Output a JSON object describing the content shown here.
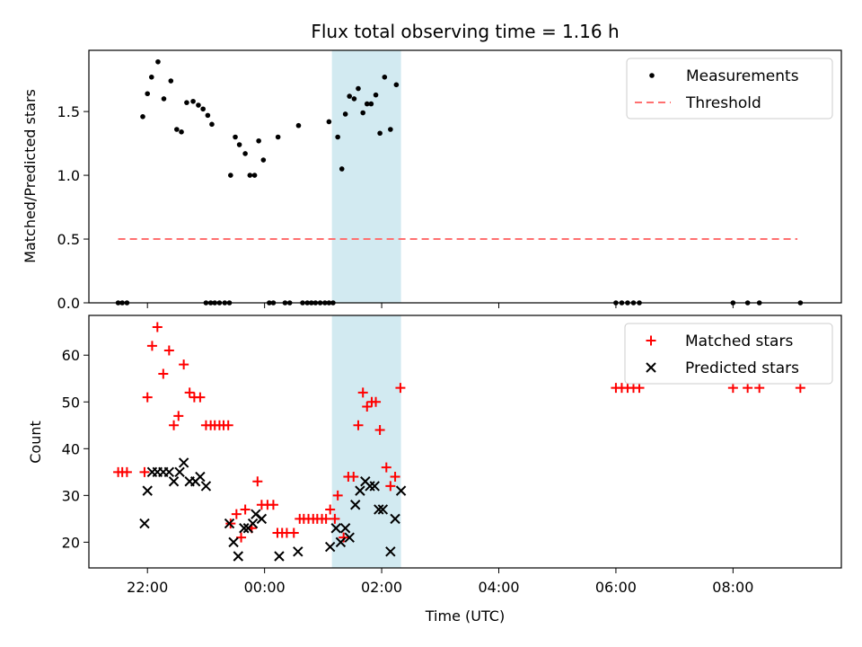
{
  "chart_data": {
    "type": "scatter",
    "title": "Flux total observing time = 1.16 h",
    "xlabel": "Time (UTC)",
    "colors": {
      "matched": "#ff0000",
      "predicted": "#000000",
      "threshold": "#ff7070",
      "shade": "#add8e6",
      "measurement": "#000000"
    },
    "x_axis": {
      "unit": "hours relative to 00:00 UTC",
      "xlim": [
        -3.0,
        9.85
      ],
      "ticks": [
        -2,
        0,
        2,
        4,
        6,
        8
      ],
      "tick_labels": [
        "22:00",
        "00:00",
        "02:00",
        "04:00",
        "06:00",
        "08:00"
      ]
    },
    "shaded_interval": [
      1.15,
      2.33
    ],
    "panels": [
      {
        "ylabel": "Matched/Predicted stars",
        "ylim": [
          0,
          1.98
        ],
        "yticks": [
          0.0,
          0.5,
          1.0,
          1.5
        ],
        "ytick_labels": [
          "0.0",
          "0.5",
          "1.0",
          "1.5"
        ],
        "legend": {
          "position": "top-right",
          "entries": [
            "Measurements",
            "Threshold"
          ]
        },
        "threshold": {
          "name": "Threshold",
          "value": 0.5,
          "x_range": [
            -2.5,
            9.1
          ]
        },
        "measurements": {
          "name": "Measurements",
          "points": [
            [
              -2.5,
              0
            ],
            [
              -2.43,
              0
            ],
            [
              -2.35,
              0
            ],
            [
              -2.08,
              1.46
            ],
            [
              -2.0,
              1.64
            ],
            [
              -1.93,
              1.77
            ],
            [
              -1.82,
              1.89
            ],
            [
              -1.72,
              1.6
            ],
            [
              -1.6,
              1.74
            ],
            [
              -1.5,
              1.36
            ],
            [
              -1.42,
              1.34
            ],
            [
              -1.33,
              1.57
            ],
            [
              -1.22,
              1.58
            ],
            [
              -1.13,
              1.55
            ],
            [
              -1.05,
              1.52
            ],
            [
              -0.97,
              1.47
            ],
            [
              -0.9,
              1.4
            ],
            [
              -1.0,
              0
            ],
            [
              -0.92,
              0
            ],
            [
              -0.85,
              0
            ],
            [
              -0.77,
              0
            ],
            [
              -0.68,
              0
            ],
            [
              -0.6,
              0
            ],
            [
              -0.58,
              1.0
            ],
            [
              -0.5,
              1.3
            ],
            [
              -0.43,
              1.24
            ],
            [
              -0.33,
              1.17
            ],
            [
              -0.25,
              1.0
            ],
            [
              -0.17,
              1.0
            ],
            [
              -0.1,
              1.27
            ],
            [
              -0.02,
              1.12
            ],
            [
              0.08,
              0
            ],
            [
              0.15,
              0
            ],
            [
              0.23,
              1.3
            ],
            [
              0.35,
              0
            ],
            [
              0.43,
              0
            ],
            [
              0.58,
              1.39
            ],
            [
              0.65,
              0
            ],
            [
              0.73,
              0
            ],
            [
              0.8,
              0
            ],
            [
              0.87,
              0
            ],
            [
              0.95,
              0
            ],
            [
              1.03,
              0
            ],
            [
              1.1,
              0
            ],
            [
              1.17,
              0
            ],
            [
              1.1,
              1.42
            ],
            [
              1.25,
              1.3
            ],
            [
              1.32,
              1.05
            ],
            [
              1.38,
              1.48
            ],
            [
              1.45,
              1.62
            ],
            [
              1.53,
              1.6
            ],
            [
              1.6,
              1.68
            ],
            [
              1.68,
              1.49
            ],
            [
              1.75,
              1.56
            ],
            [
              1.82,
              1.56
            ],
            [
              1.9,
              1.63
            ],
            [
              1.97,
              1.33
            ],
            [
              2.05,
              1.77
            ],
            [
              2.15,
              1.36
            ],
            [
              2.25,
              1.71
            ],
            [
              6.0,
              0
            ],
            [
              6.1,
              0
            ],
            [
              6.2,
              0
            ],
            [
              6.3,
              0
            ],
            [
              6.4,
              0
            ],
            [
              8.0,
              0
            ],
            [
              8.25,
              0
            ],
            [
              8.45,
              0
            ],
            [
              9.15,
              0
            ]
          ]
        }
      },
      {
        "ylabel": "Count",
        "ylim": [
          14.5,
          68.5
        ],
        "yticks": [
          20,
          30,
          40,
          50,
          60
        ],
        "ytick_labels": [
          "20",
          "30",
          "40",
          "50",
          "60"
        ],
        "legend": {
          "position": "top-right",
          "entries": [
            "Matched stars",
            "Predicted stars"
          ]
        },
        "series": [
          {
            "name": "Matched stars",
            "marker": "plus",
            "points": [
              [
                -2.5,
                35
              ],
              [
                -2.43,
                35
              ],
              [
                -2.35,
                35
              ],
              [
                -2.05,
                35
              ],
              [
                -2.0,
                51
              ],
              [
                -1.92,
                62
              ],
              [
                -1.83,
                66
              ],
              [
                -1.73,
                56
              ],
              [
                -1.63,
                61
              ],
              [
                -1.55,
                45
              ],
              [
                -1.47,
                47
              ],
              [
                -1.38,
                58
              ],
              [
                -1.28,
                52
              ],
              [
                -1.2,
                51
              ],
              [
                -1.1,
                51
              ],
              [
                -1.0,
                45
              ],
              [
                -0.92,
                45
              ],
              [
                -0.85,
                45
              ],
              [
                -0.77,
                45
              ],
              [
                -0.7,
                45
              ],
              [
                -0.62,
                45
              ],
              [
                -0.58,
                24
              ],
              [
                -0.48,
                26
              ],
              [
                -0.4,
                21
              ],
              [
                -0.33,
                27
              ],
              [
                -0.22,
                23
              ],
              [
                -0.12,
                33
              ],
              [
                -0.05,
                28
              ],
              [
                0.05,
                28
              ],
              [
                0.15,
                28
              ],
              [
                0.22,
                22
              ],
              [
                0.3,
                22
              ],
              [
                0.38,
                22
              ],
              [
                0.5,
                22
              ],
              [
                0.6,
                25
              ],
              [
                0.67,
                25
              ],
              [
                0.75,
                25
              ],
              [
                0.83,
                25
              ],
              [
                0.9,
                25
              ],
              [
                0.98,
                25
              ],
              [
                1.05,
                25
              ],
              [
                1.12,
                27
              ],
              [
                1.2,
                25
              ],
              [
                1.25,
                30
              ],
              [
                1.35,
                21
              ],
              [
                1.43,
                34
              ],
              [
                1.52,
                34
              ],
              [
                1.6,
                45
              ],
              [
                1.68,
                52
              ],
              [
                1.75,
                49
              ],
              [
                1.83,
                50
              ],
              [
                1.9,
                50
              ],
              [
                1.97,
                44
              ],
              [
                2.08,
                36
              ],
              [
                2.15,
                32
              ],
              [
                2.23,
                34
              ],
              [
                2.32,
                53
              ],
              [
                6.0,
                53
              ],
              [
                6.1,
                53
              ],
              [
                6.2,
                53
              ],
              [
                6.3,
                53
              ],
              [
                6.4,
                53
              ],
              [
                8.0,
                53
              ],
              [
                8.25,
                53
              ],
              [
                8.45,
                53
              ],
              [
                9.15,
                53
              ]
            ]
          },
          {
            "name": "Predicted stars",
            "marker": "x",
            "points": [
              [
                -2.05,
                24
              ],
              [
                -2.0,
                31
              ],
              [
                -1.92,
                35
              ],
              [
                -1.83,
                35
              ],
              [
                -1.73,
                35
              ],
              [
                -1.63,
                35
              ],
              [
                -1.55,
                33
              ],
              [
                -1.45,
                35
              ],
              [
                -1.38,
                37
              ],
              [
                -1.28,
                33
              ],
              [
                -1.18,
                33
              ],
              [
                -1.1,
                34
              ],
              [
                -1.0,
                32
              ],
              [
                -0.6,
                24
              ],
              [
                -0.53,
                20
              ],
              [
                -0.45,
                17
              ],
              [
                -0.35,
                23
              ],
              [
                -0.28,
                23
              ],
              [
                -0.2,
                24
              ],
              [
                -0.15,
                26
              ],
              [
                -0.05,
                25
              ],
              [
                0.25,
                17
              ],
              [
                0.57,
                18
              ],
              [
                1.12,
                19
              ],
              [
                1.22,
                23
              ],
              [
                1.3,
                20
              ],
              [
                1.38,
                23
              ],
              [
                1.45,
                21
              ],
              [
                1.55,
                28
              ],
              [
                1.63,
                31
              ],
              [
                1.72,
                33
              ],
              [
                1.8,
                32
              ],
              [
                1.88,
                32
              ],
              [
                1.95,
                27
              ],
              [
                2.02,
                27
              ],
              [
                2.15,
                18
              ],
              [
                2.23,
                25
              ],
              [
                2.33,
                31
              ]
            ]
          }
        ]
      }
    ]
  }
}
